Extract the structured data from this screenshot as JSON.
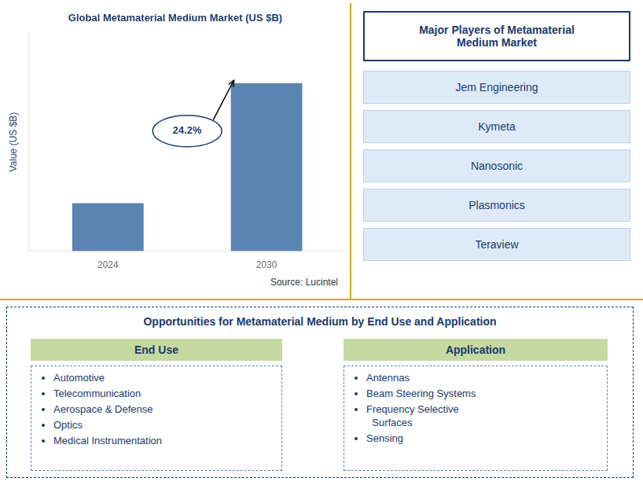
{
  "chart_data": {
    "type": "bar",
    "title": "Global Metamaterial Medium Market (US $B)",
    "categories": [
      "2024",
      "2030"
    ],
    "values": [
      1.0,
      3.5
    ],
    "color": "#5B84B1",
    "ylabel": "Value (US $B)",
    "ylim": [
      0,
      4.55
    ],
    "grid": false,
    "tick_labels": "x",
    "annotations": [
      "24.2%"
    ],
    "source": "Source: Lucintel"
  },
  "players_panel": {
    "title": "Major Players of Metamaterial\nMedium Market",
    "items": [
      "Jem Engineering",
      "Kymeta",
      "Nanosonic",
      "Plasmonics",
      "Teraview"
    ]
  },
  "opportunities_panel": {
    "title": "Opportunities for Metamaterial Medium by End Use and Application",
    "columns": [
      {
        "header": "End Use",
        "items": [
          "Automotive",
          "Telecommunication",
          "Aerospace & Defense",
          "Optics",
          "Medical Instrumentation"
        ]
      },
      {
        "header": "Application",
        "items": [
          "Antennas",
          "Beam Steering Systems",
          "Frequency Selective\n  Surfaces",
          "Sensing"
        ]
      }
    ]
  }
}
